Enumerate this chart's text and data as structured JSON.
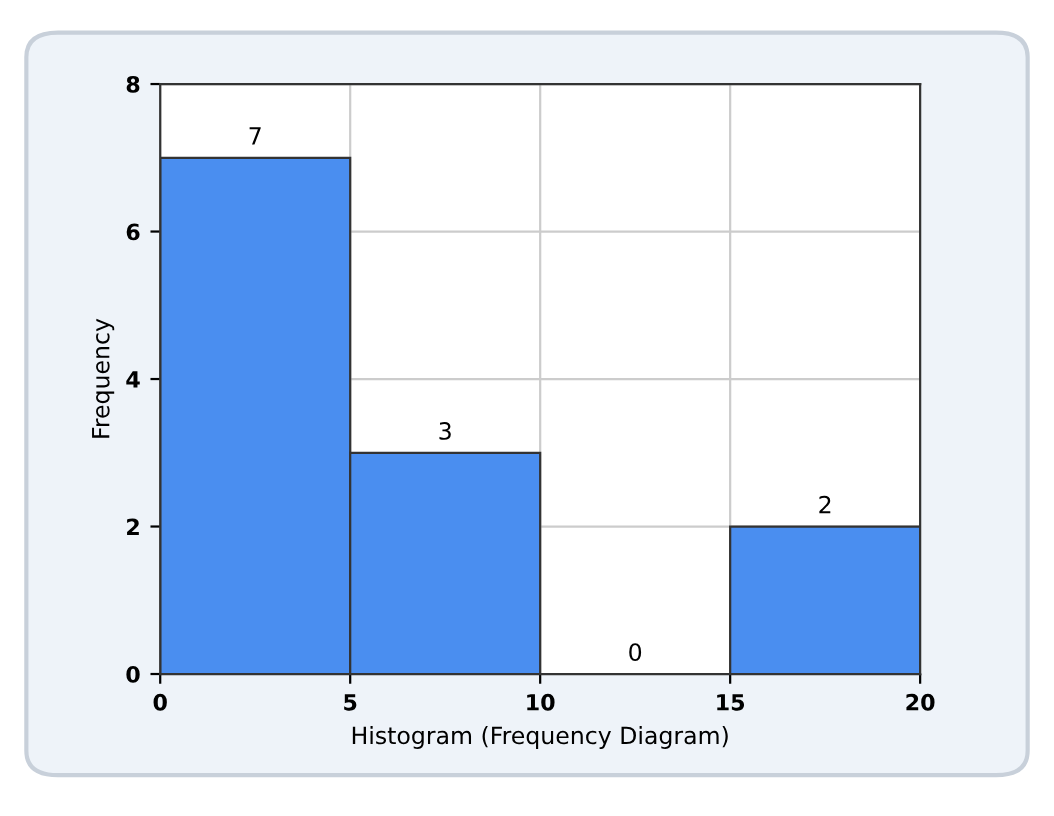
{
  "chart_data": {
    "type": "histogram",
    "xlabel": "Histogram (Frequency Diagram)",
    "ylabel": "Frequency",
    "bins": [
      0,
      5,
      10,
      15,
      20
    ],
    "values": [
      7,
      3,
      0,
      2
    ],
    "color": "#4a8ef0",
    "xlim": [
      0,
      20
    ],
    "xticks": [
      0,
      5,
      10,
      15,
      20
    ],
    "ylim": [
      0,
      8
    ],
    "yticks": [
      0,
      2,
      4,
      6,
      8
    ],
    "grid": true,
    "data_labels": true
  }
}
